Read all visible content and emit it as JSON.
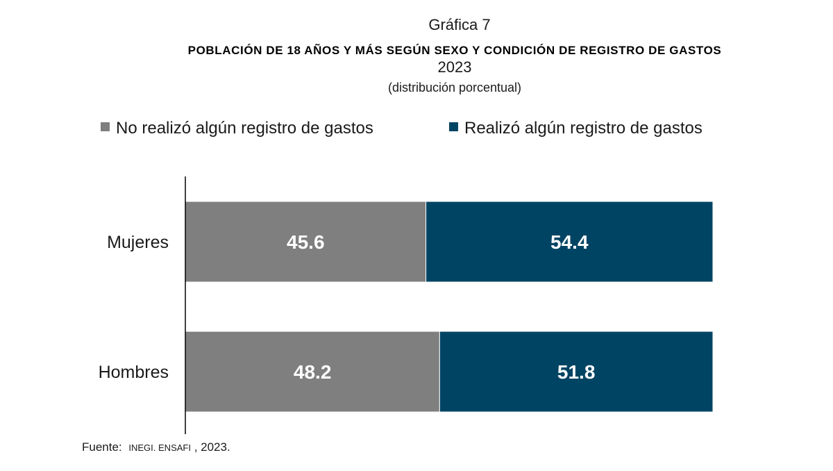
{
  "chart_data": {
    "type": "bar",
    "orientation": "horizontal",
    "stacked": true,
    "kicker": "Gráfica 7",
    "title": "POBLACIÓN DE 18 AÑOS Y MÁS SEGÚN SEXO Y CONDICIÓN DE REGISTRO DE GASTOS",
    "year": "2023",
    "subtitle": "(distribución porcentual)",
    "categories": [
      "Mujeres",
      "Hombres"
    ],
    "series": [
      {
        "name": "No realizó algún registro de gastos",
        "color": "#7f7f7f",
        "values": [
          45.6,
          48.2
        ]
      },
      {
        "name": "Realizó algún registro de gastos",
        "color": "#004464",
        "values": [
          54.4,
          51.8
        ]
      }
    ],
    "xlim": [
      0,
      100
    ],
    "grid": false,
    "legend_position": "top",
    "source": {
      "label": "Fuente:",
      "text": "INEGI. ENSAFI",
      "year": ", 2023."
    }
  }
}
